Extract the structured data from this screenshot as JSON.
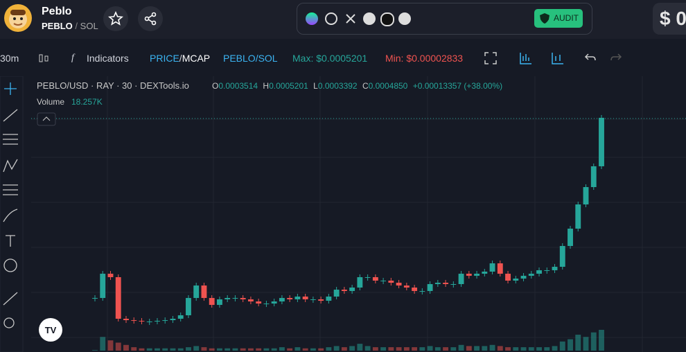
{
  "header": {
    "name": "Peblo",
    "base": "PEBLO",
    "sep": "/",
    "quote": "SOL",
    "audit": "AUDIT",
    "price": "$ 0"
  },
  "toolbar": {
    "interval": "30m",
    "indicators": "Indicators",
    "price": "PRICE",
    "slash": "/",
    "mcap": "MCAP",
    "pair": "PEBLO/SOL",
    "max": "Max: $0.0005201",
    "min": "Min: $0.00002833"
  },
  "legend": {
    "symbol": "PEBLO/USD · RAY · 30 · DEXTools.io",
    "o_label": "O",
    "o": "0.0003514",
    "h_label": "H",
    "h": "0.0005201",
    "l_label": "L",
    "l": "0.0003392",
    "c_label": "C",
    "c": "0.0004850",
    "change": "+0.00013357 (+38.00%)",
    "volume_label": "Volume",
    "volume": "18.257K"
  },
  "chart_data": {
    "type": "candlestick",
    "up_color": "#26a69a",
    "down_color": "#ef5350",
    "closes": [
      8.92e-05,
      0.0001425,
      0.0001349,
      4.36e-05,
      4.05e-05,
      3.9e-05,
      3.75e-05,
      3.75e-05,
      3.9e-05,
      4.05e-05,
      4.36e-05,
      5.12e-05,
      8.92e-05,
      0.0001166,
      8.92e-05,
      7.4e-05,
      8.62e-05,
      8.92e-05,
      8.92e-05,
      8.62e-05,
      8.16e-05,
      7.7e-05,
      7.7e-05,
      8.16e-05,
      8.92e-05,
      8.62e-05,
      9.23e-05,
      8.62e-05,
      8.62e-05,
      8.31e-05,
      9.23e-05,
      0.0001075,
      0.0001045,
      0.0001121,
      0.0001349,
      0.0001349,
      0.0001273,
      0.0001273,
      0.0001227,
      0.0001166,
      0.0001121,
      0.0001045,
      0.0001045,
      0.0001197,
      0.0001227,
      0.0001197,
      0.0001197,
      0.0001425,
      0.0001379,
      0.0001425,
      0.0001471,
      0.0001653,
      0.0001425,
      0.0001273,
      0.0001318,
      0.0001379,
      0.0001425,
      0.0001501,
      0.0001501,
      0.0001577,
      0.0002034,
      0.0002415,
      0.0002947,
      0.0003328,
      0.0003785,
      0.000485
    ],
    "volumes": [
      0.5,
      12,
      9,
      7,
      5,
      3,
      2,
      2,
      2,
      2,
      2,
      2,
      3,
      4,
      3,
      2,
      2,
      2,
      2,
      2,
      2,
      2,
      2,
      2,
      3,
      2,
      3,
      2,
      2,
      2,
      3,
      4,
      3,
      4,
      6,
      4,
      3,
      3,
      3,
      3,
      3,
      3,
      3,
      4,
      3,
      3,
      3,
      5,
      4,
      4,
      4,
      5,
      4,
      3,
      3,
      3,
      3,
      3,
      3,
      4,
      8,
      10,
      14,
      12,
      16,
      18.257
    ]
  }
}
